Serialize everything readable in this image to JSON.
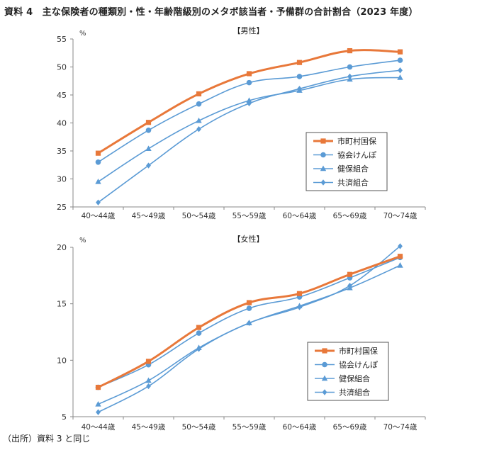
{
  "page": {
    "title": "資料 4　主な保険者の種類別・性・年齢階級別のメタボ該当者・予備群の合計割合（2023 年度）",
    "source": "（出所）資料 3 と同じ"
  },
  "colors": {
    "orange": "#E8783A",
    "blue": "#5B9BD5",
    "axis": "#888888"
  },
  "chart_data": [
    {
      "type": "line",
      "title": "【男性】",
      "ylabel": "%",
      "ylim": [
        25,
        55
      ],
      "yticks": [
        25,
        30,
        35,
        40,
        45,
        50,
        55
      ],
      "categories": [
        "40～44歳",
        "45～49歳",
        "50～54歳",
        "55～59歳",
        "60～64歳",
        "65～69歳",
        "70～74歳"
      ],
      "legend_position": "right",
      "series": [
        {
          "name": "市町村国保",
          "color": "#E8783A",
          "marker": "square",
          "values": [
            34.6,
            40.1,
            45.2,
            48.8,
            50.8,
            52.9,
            52.7
          ]
        },
        {
          "name": "協会けんぽ",
          "color": "#5B9BD5",
          "marker": "circle",
          "values": [
            33.0,
            38.7,
            43.4,
            47.2,
            48.3,
            50.0,
            51.2
          ]
        },
        {
          "name": "健保組合",
          "color": "#5B9BD5",
          "marker": "triangle",
          "values": [
            29.5,
            35.4,
            40.4,
            44.0,
            45.8,
            47.8,
            48.1
          ]
        },
        {
          "name": "共済組合",
          "color": "#5B9BD5",
          "marker": "diamond",
          "values": [
            25.8,
            32.4,
            38.9,
            43.5,
            46.1,
            48.3,
            49.4
          ]
        }
      ]
    },
    {
      "type": "line",
      "title": "【女性】",
      "ylabel": "%",
      "ylim": [
        5,
        20
      ],
      "yticks": [
        5,
        10,
        15,
        20
      ],
      "categories": [
        "40～44歳",
        "45～49歳",
        "50～54歳",
        "55～59歳",
        "60～64歳",
        "65～69歳",
        "70～74歳"
      ],
      "legend_position": "right",
      "series": [
        {
          "name": "市町村国保",
          "color": "#E8783A",
          "marker": "square",
          "values": [
            7.6,
            9.9,
            12.9,
            15.1,
            15.9,
            17.6,
            19.2
          ]
        },
        {
          "name": "協会けんぽ",
          "color": "#5B9BD5",
          "marker": "circle",
          "values": [
            7.6,
            9.6,
            12.4,
            14.6,
            15.6,
            17.3,
            19.1
          ]
        },
        {
          "name": "健保組合",
          "color": "#5B9BD5",
          "marker": "triangle",
          "values": [
            6.1,
            8.2,
            11.1,
            13.3,
            14.8,
            16.4,
            18.4
          ]
        },
        {
          "name": "共済組合",
          "color": "#5B9BD5",
          "marker": "diamond",
          "values": [
            5.4,
            7.7,
            11.0,
            13.3,
            14.7,
            16.6,
            20.1
          ]
        }
      ]
    }
  ]
}
